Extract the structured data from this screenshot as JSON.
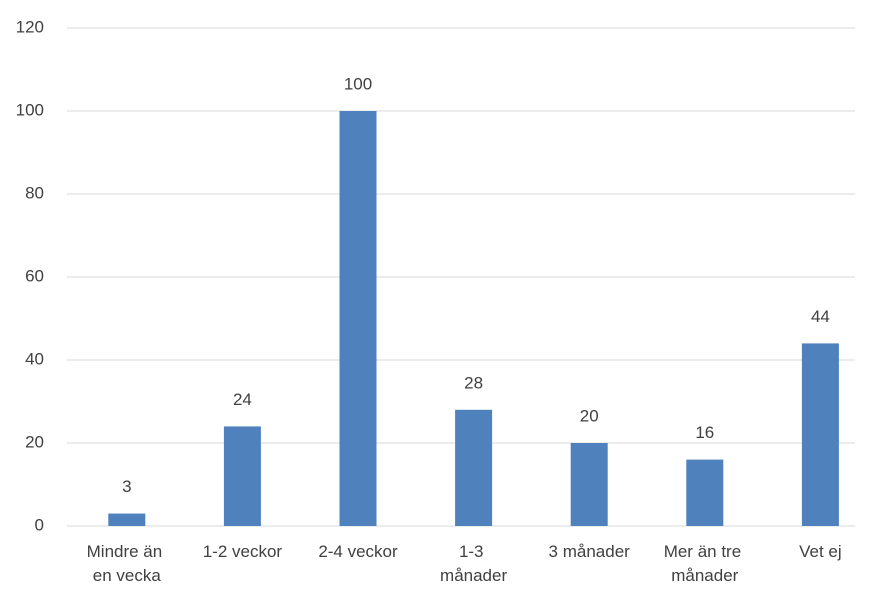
{
  "chart_data": {
    "type": "bar",
    "categories": [
      "Mindre än en vecka",
      "1-2 veckor",
      "2-4 veckor",
      "1-3 månader",
      "3 månader",
      "Mer än tre månader",
      "Vet ej"
    ],
    "values": [
      3,
      24,
      100,
      28,
      20,
      16,
      44
    ],
    "color": "#4f81bd",
    "ylim": [
      0,
      120
    ],
    "yticks": [
      0,
      20,
      40,
      60,
      80,
      100,
      120
    ],
    "grid": true
  }
}
